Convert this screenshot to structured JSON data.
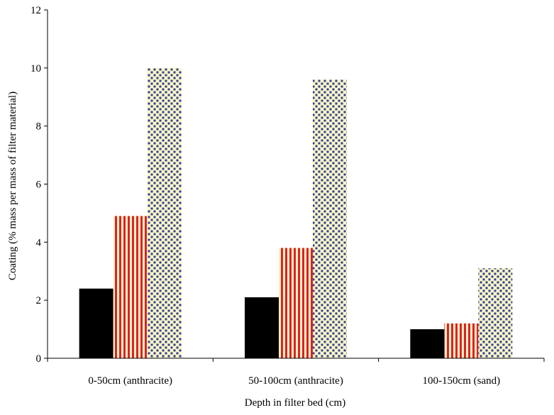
{
  "chart_data": {
    "type": "bar",
    "title": "",
    "xlabel": "Depth in filter bed (cm)",
    "ylabel": "Coating (% mass per mass of filter material)",
    "ylim": [
      0,
      12
    ],
    "yticks": [
      0,
      2,
      4,
      6,
      8,
      10,
      12
    ],
    "grid": false,
    "legend": "none",
    "categories": [
      "0-50cm (anthracite)",
      "50-100cm (anthracite)",
      "100-150cm (sand)"
    ],
    "series": [
      {
        "values": [
          2.4,
          2.1,
          1.0
        ],
        "pattern": "solid",
        "color": "#000000"
      },
      {
        "values": [
          4.9,
          3.8,
          1.2
        ],
        "pattern": "vertical-stripes",
        "color": "#d9232a",
        "bg": "#fff4c2"
      },
      {
        "values": [
          10.0,
          9.6,
          3.1
        ],
        "pattern": "dots",
        "color": "#2b3f8f",
        "bg": "#fdf6c8"
      }
    ]
  }
}
